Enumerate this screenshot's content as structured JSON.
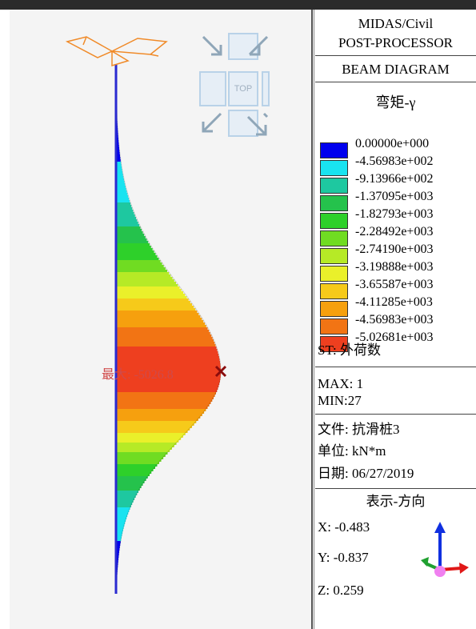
{
  "viewport": {
    "max_label": "最大: -5026.8",
    "view_cube_label": "TOP"
  },
  "panel": {
    "title_line1": "MIDAS/Civil",
    "title_line2": "POST-PROCESSOR",
    "diagram_type": "BEAM DIAGRAM",
    "component": "弯矩-γ",
    "legend": [
      {
        "value": "0.00000e+000",
        "color": "#0000ee"
      },
      {
        "value": "-4.56983e+002",
        "color": "#19e3f0"
      },
      {
        "value": "-9.13966e+002",
        "color": "#1ec8a0"
      },
      {
        "value": "-1.37095e+003",
        "color": "#25c24c"
      },
      {
        "value": "-1.82793e+003",
        "color": "#2ed02a"
      },
      {
        "value": "-2.28492e+003",
        "color": "#70dc22"
      },
      {
        "value": "-2.74190e+003",
        "color": "#b6ea26"
      },
      {
        "value": "-3.19888e+003",
        "color": "#eaf02a"
      },
      {
        "value": "-3.65587e+003",
        "color": "#f6ca1a"
      },
      {
        "value": "-4.11285e+003",
        "color": "#f6a00e"
      },
      {
        "value": "-4.56983e+003",
        "color": "#f27414"
      },
      {
        "value": "-5.02681e+003",
        "color": "#ee3f1f"
      }
    ],
    "st_label": "ST:  外荷数",
    "max": "MAX: 1",
    "min": "MIN:27",
    "file": "文件:  抗滑桩3",
    "unit": "单位:  kN*m",
    "date": "日期:  06/27/2019",
    "direction_title": "表示-方向",
    "x": "X: -0.483",
    "y": "Y: -0.837",
    "z": "Z: 0.259"
  }
}
